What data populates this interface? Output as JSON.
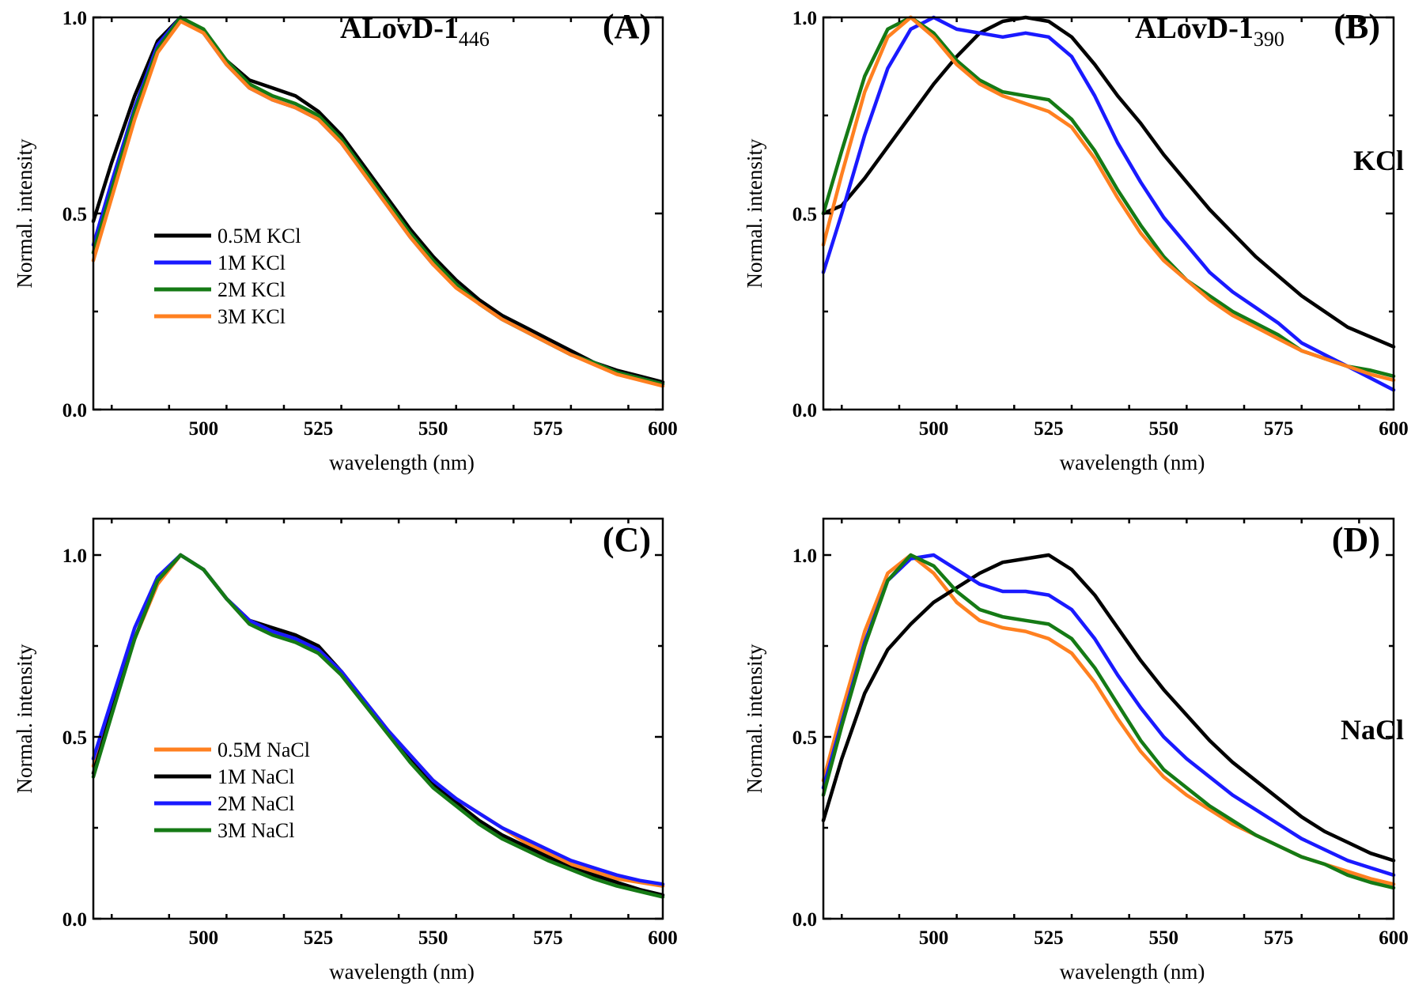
{
  "chart_data": [
    {
      "id": "A",
      "type": "line",
      "panel_label": "(A)",
      "title_main": "ALovD-1",
      "title_sub": "446",
      "side_label": "",
      "xlabel": "wavelength (nm)",
      "ylabel": "Normal. intensity",
      "xlim": [
        476,
        600
      ],
      "ylim": [
        0,
        1.0
      ],
      "xticks": [
        500,
        525,
        550,
        575,
        600
      ],
      "yticks": [
        0.0,
        0.5,
        1.0
      ],
      "ytick_labels": [
        "0.0",
        "0.5",
        "1.0"
      ],
      "legend_position": "center-left",
      "series": [
        {
          "name": "0.5M KCl",
          "color": "#000000",
          "x": [
            476,
            480,
            485,
            490,
            495,
            500,
            505,
            510,
            515,
            520,
            525,
            530,
            535,
            540,
            545,
            550,
            555,
            560,
            565,
            570,
            575,
            580,
            585,
            590,
            595,
            600
          ],
          "y": [
            0.48,
            0.63,
            0.8,
            0.94,
            1.0,
            0.96,
            0.89,
            0.84,
            0.82,
            0.8,
            0.76,
            0.7,
            0.62,
            0.54,
            0.46,
            0.39,
            0.33,
            0.28,
            0.24,
            0.21,
            0.18,
            0.15,
            0.12,
            0.1,
            0.085,
            0.07
          ]
        },
        {
          "name": "1M KCl",
          "color": "#1a1aff",
          "x": [
            476,
            480,
            485,
            490,
            495,
            500,
            505,
            510,
            515,
            520,
            525,
            530,
            535,
            540,
            545,
            550,
            555,
            560,
            565,
            570,
            575,
            580,
            585,
            590,
            595,
            600
          ],
          "y": [
            0.42,
            0.58,
            0.77,
            0.93,
            1.0,
            0.96,
            0.88,
            0.82,
            0.79,
            0.77,
            0.74,
            0.68,
            0.6,
            0.52,
            0.44,
            0.37,
            0.32,
            0.27,
            0.23,
            0.2,
            0.17,
            0.14,
            0.12,
            0.095,
            0.08,
            0.065
          ]
        },
        {
          "name": "2M KCl",
          "color": "#157a15",
          "x": [
            476,
            480,
            485,
            490,
            495,
            500,
            505,
            510,
            515,
            520,
            525,
            530,
            535,
            540,
            545,
            550,
            555,
            560,
            565,
            570,
            575,
            580,
            585,
            590,
            595,
            600
          ],
          "y": [
            0.4,
            0.56,
            0.76,
            0.92,
            1.0,
            0.97,
            0.89,
            0.83,
            0.8,
            0.78,
            0.75,
            0.69,
            0.61,
            0.53,
            0.45,
            0.38,
            0.32,
            0.27,
            0.23,
            0.2,
            0.17,
            0.14,
            0.12,
            0.095,
            0.08,
            0.065
          ]
        },
        {
          "name": "3M KCl",
          "color": "#ff8020",
          "x": [
            476,
            480,
            485,
            490,
            495,
            500,
            505,
            510,
            515,
            520,
            525,
            530,
            535,
            540,
            545,
            550,
            555,
            560,
            565,
            570,
            575,
            580,
            585,
            590,
            595,
            600
          ],
          "y": [
            0.38,
            0.54,
            0.74,
            0.91,
            0.99,
            0.96,
            0.88,
            0.82,
            0.79,
            0.77,
            0.74,
            0.68,
            0.6,
            0.52,
            0.44,
            0.37,
            0.31,
            0.27,
            0.23,
            0.2,
            0.17,
            0.14,
            0.115,
            0.09,
            0.075,
            0.06
          ]
        }
      ]
    },
    {
      "id": "B",
      "type": "line",
      "panel_label": "(B)",
      "title_main": "ALovD-1",
      "title_sub": "390",
      "side_label": "KCl",
      "xlabel": "wavelength (nm)",
      "ylabel": "Normal. intensity",
      "xlim": [
        476,
        600
      ],
      "ylim": [
        0,
        1.0
      ],
      "xticks": [
        500,
        525,
        550,
        575,
        600
      ],
      "yticks": [
        0.0,
        0.5,
        1.0
      ],
      "ytick_labels": [
        "0.0",
        "0.5",
        "1.0"
      ],
      "legend_position": "",
      "series": [
        {
          "name": "0.5M KCl",
          "color": "#000000",
          "x": [
            476,
            480,
            485,
            490,
            495,
            500,
            505,
            510,
            515,
            520,
            525,
            530,
            535,
            540,
            545,
            550,
            555,
            560,
            565,
            570,
            575,
            580,
            585,
            590,
            595,
            600
          ],
          "y": [
            0.5,
            0.52,
            0.59,
            0.67,
            0.75,
            0.83,
            0.9,
            0.96,
            0.99,
            1.0,
            0.99,
            0.95,
            0.88,
            0.8,
            0.73,
            0.65,
            0.58,
            0.51,
            0.45,
            0.39,
            0.34,
            0.29,
            0.25,
            0.21,
            0.185,
            0.16
          ]
        },
        {
          "name": "1M KCl",
          "color": "#1a1aff",
          "x": [
            476,
            480,
            485,
            490,
            495,
            500,
            505,
            510,
            515,
            520,
            525,
            530,
            535,
            540,
            545,
            550,
            555,
            560,
            565,
            570,
            575,
            580,
            585,
            590,
            595,
            600
          ],
          "y": [
            0.35,
            0.5,
            0.7,
            0.87,
            0.97,
            1.0,
            0.97,
            0.96,
            0.95,
            0.96,
            0.95,
            0.9,
            0.8,
            0.68,
            0.58,
            0.49,
            0.42,
            0.35,
            0.3,
            0.26,
            0.22,
            0.17,
            0.14,
            0.11,
            0.08,
            0.05
          ]
        },
        {
          "name": "2M KCl",
          "color": "#157a15",
          "x": [
            476,
            480,
            485,
            490,
            495,
            500,
            505,
            510,
            515,
            520,
            525,
            530,
            535,
            540,
            545,
            550,
            555,
            560,
            565,
            570,
            575,
            580,
            585,
            590,
            595,
            600
          ],
          "y": [
            0.5,
            0.66,
            0.85,
            0.97,
            1.0,
            0.96,
            0.89,
            0.84,
            0.81,
            0.8,
            0.79,
            0.74,
            0.66,
            0.56,
            0.47,
            0.39,
            0.33,
            0.29,
            0.25,
            0.22,
            0.19,
            0.15,
            0.13,
            0.11,
            0.1,
            0.085
          ]
        },
        {
          "name": "3M KCl",
          "color": "#ff8020",
          "x": [
            476,
            480,
            485,
            490,
            495,
            500,
            505,
            510,
            515,
            520,
            525,
            530,
            535,
            540,
            545,
            550,
            555,
            560,
            565,
            570,
            575,
            580,
            585,
            590,
            595,
            600
          ],
          "y": [
            0.42,
            0.6,
            0.81,
            0.95,
            1.0,
            0.95,
            0.88,
            0.83,
            0.8,
            0.78,
            0.76,
            0.72,
            0.64,
            0.54,
            0.45,
            0.38,
            0.33,
            0.28,
            0.24,
            0.21,
            0.18,
            0.15,
            0.13,
            0.11,
            0.09,
            0.075
          ]
        }
      ]
    },
    {
      "id": "C",
      "type": "line",
      "panel_label": "(C)",
      "title_main": "",
      "title_sub": "",
      "side_label": "",
      "xlabel": "wavelength (nm)",
      "ylabel": "Normal. intensity",
      "xlim": [
        476,
        600
      ],
      "ylim": [
        0,
        1.1
      ],
      "xticks": [
        500,
        525,
        550,
        575,
        600
      ],
      "yticks": [
        0.0,
        0.5,
        1.0
      ],
      "ytick_labels": [
        "0.0",
        "0.5",
        "1.0"
      ],
      "legend_position": "center-left",
      "series": [
        {
          "name": "0.5M NaCl",
          "color": "#ff8020",
          "x": [
            476,
            480,
            485,
            490,
            495,
            500,
            505,
            510,
            515,
            520,
            525,
            530,
            535,
            540,
            545,
            550,
            555,
            560,
            565,
            570,
            575,
            580,
            585,
            590,
            595,
            600
          ],
          "y": [
            0.42,
            0.58,
            0.77,
            0.92,
            1.0,
            0.96,
            0.88,
            0.82,
            0.79,
            0.77,
            0.74,
            0.68,
            0.6,
            0.52,
            0.45,
            0.38,
            0.33,
            0.29,
            0.25,
            0.21,
            0.18,
            0.15,
            0.13,
            0.11,
            0.1,
            0.09
          ]
        },
        {
          "name": "1M NaCl",
          "color": "#000000",
          "x": [
            476,
            480,
            485,
            490,
            495,
            500,
            505,
            510,
            515,
            520,
            525,
            530,
            535,
            540,
            545,
            550,
            555,
            560,
            565,
            570,
            575,
            580,
            585,
            590,
            595,
            600
          ],
          "y": [
            0.4,
            0.57,
            0.77,
            0.93,
            1.0,
            0.96,
            0.88,
            0.82,
            0.8,
            0.78,
            0.75,
            0.68,
            0.6,
            0.52,
            0.44,
            0.37,
            0.32,
            0.27,
            0.23,
            0.2,
            0.17,
            0.14,
            0.12,
            0.1,
            0.08,
            0.065
          ]
        },
        {
          "name": "2M NaCl",
          "color": "#1a1aff",
          "x": [
            476,
            480,
            485,
            490,
            495,
            500,
            505,
            510,
            515,
            520,
            525,
            530,
            535,
            540,
            545,
            550,
            555,
            560,
            565,
            570,
            575,
            580,
            585,
            590,
            595,
            600
          ],
          "y": [
            0.44,
            0.6,
            0.8,
            0.94,
            1.0,
            0.96,
            0.88,
            0.82,
            0.79,
            0.77,
            0.74,
            0.68,
            0.6,
            0.52,
            0.45,
            0.38,
            0.33,
            0.29,
            0.25,
            0.22,
            0.19,
            0.16,
            0.14,
            0.12,
            0.105,
            0.095
          ]
        },
        {
          "name": "3M NaCl",
          "color": "#157a15",
          "x": [
            476,
            480,
            485,
            490,
            495,
            500,
            505,
            510,
            515,
            520,
            525,
            530,
            535,
            540,
            545,
            550,
            555,
            560,
            565,
            570,
            575,
            580,
            585,
            590,
            595,
            600
          ],
          "y": [
            0.39,
            0.56,
            0.77,
            0.93,
            1.0,
            0.96,
            0.88,
            0.81,
            0.78,
            0.76,
            0.73,
            0.67,
            0.59,
            0.51,
            0.43,
            0.36,
            0.31,
            0.26,
            0.22,
            0.19,
            0.16,
            0.135,
            0.11,
            0.09,
            0.075,
            0.06
          ]
        }
      ]
    },
    {
      "id": "D",
      "type": "line",
      "panel_label": "(D)",
      "title_main": "",
      "title_sub": "",
      "side_label": "NaCl",
      "xlabel": "wavelength (nm)",
      "ylabel": "Normal. intensity",
      "xlim": [
        476,
        600
      ],
      "ylim": [
        0,
        1.1
      ],
      "xticks": [
        500,
        525,
        550,
        575,
        600
      ],
      "yticks": [
        0.0,
        0.5,
        1.0
      ],
      "ytick_labels": [
        "0.0",
        "0.5",
        "1.0"
      ],
      "legend_position": "",
      "series": [
        {
          "name": "0.5M NaCl",
          "color": "#ff8020",
          "x": [
            476,
            480,
            485,
            490,
            495,
            500,
            505,
            510,
            515,
            520,
            525,
            530,
            535,
            540,
            545,
            550,
            555,
            560,
            565,
            570,
            575,
            580,
            585,
            590,
            595,
            600
          ],
          "y": [
            0.38,
            0.57,
            0.79,
            0.95,
            1.0,
            0.95,
            0.87,
            0.82,
            0.8,
            0.79,
            0.77,
            0.73,
            0.65,
            0.55,
            0.46,
            0.39,
            0.34,
            0.3,
            0.26,
            0.23,
            0.2,
            0.17,
            0.15,
            0.13,
            0.11,
            0.095
          ]
        },
        {
          "name": "1M NaCl",
          "color": "#000000",
          "x": [
            476,
            480,
            485,
            490,
            495,
            500,
            505,
            510,
            515,
            520,
            525,
            530,
            535,
            540,
            545,
            550,
            555,
            560,
            565,
            570,
            575,
            580,
            585,
            590,
            595,
            600
          ],
          "y": [
            0.27,
            0.44,
            0.62,
            0.74,
            0.81,
            0.87,
            0.91,
            0.95,
            0.98,
            0.99,
            1.0,
            0.96,
            0.89,
            0.8,
            0.71,
            0.63,
            0.56,
            0.49,
            0.43,
            0.38,
            0.33,
            0.28,
            0.24,
            0.21,
            0.18,
            0.16
          ]
        },
        {
          "name": "2M NaCl",
          "color": "#1a1aff",
          "x": [
            476,
            480,
            485,
            490,
            495,
            500,
            505,
            510,
            515,
            520,
            525,
            530,
            535,
            540,
            545,
            550,
            555,
            560,
            565,
            570,
            575,
            580,
            585,
            590,
            595,
            600
          ],
          "y": [
            0.36,
            0.54,
            0.76,
            0.93,
            0.99,
            1.0,
            0.96,
            0.92,
            0.9,
            0.9,
            0.89,
            0.85,
            0.77,
            0.67,
            0.58,
            0.5,
            0.44,
            0.39,
            0.34,
            0.3,
            0.26,
            0.22,
            0.19,
            0.16,
            0.14,
            0.12
          ]
        },
        {
          "name": "3M NaCl",
          "color": "#157a15",
          "x": [
            476,
            480,
            485,
            490,
            495,
            500,
            505,
            510,
            515,
            520,
            525,
            530,
            535,
            540,
            545,
            550,
            555,
            560,
            565,
            570,
            575,
            580,
            585,
            590,
            595,
            600
          ],
          "y": [
            0.34,
            0.53,
            0.75,
            0.93,
            1.0,
            0.97,
            0.9,
            0.85,
            0.83,
            0.82,
            0.81,
            0.77,
            0.69,
            0.59,
            0.49,
            0.41,
            0.36,
            0.31,
            0.27,
            0.23,
            0.2,
            0.17,
            0.15,
            0.12,
            0.1,
            0.085
          ]
        }
      ]
    }
  ]
}
